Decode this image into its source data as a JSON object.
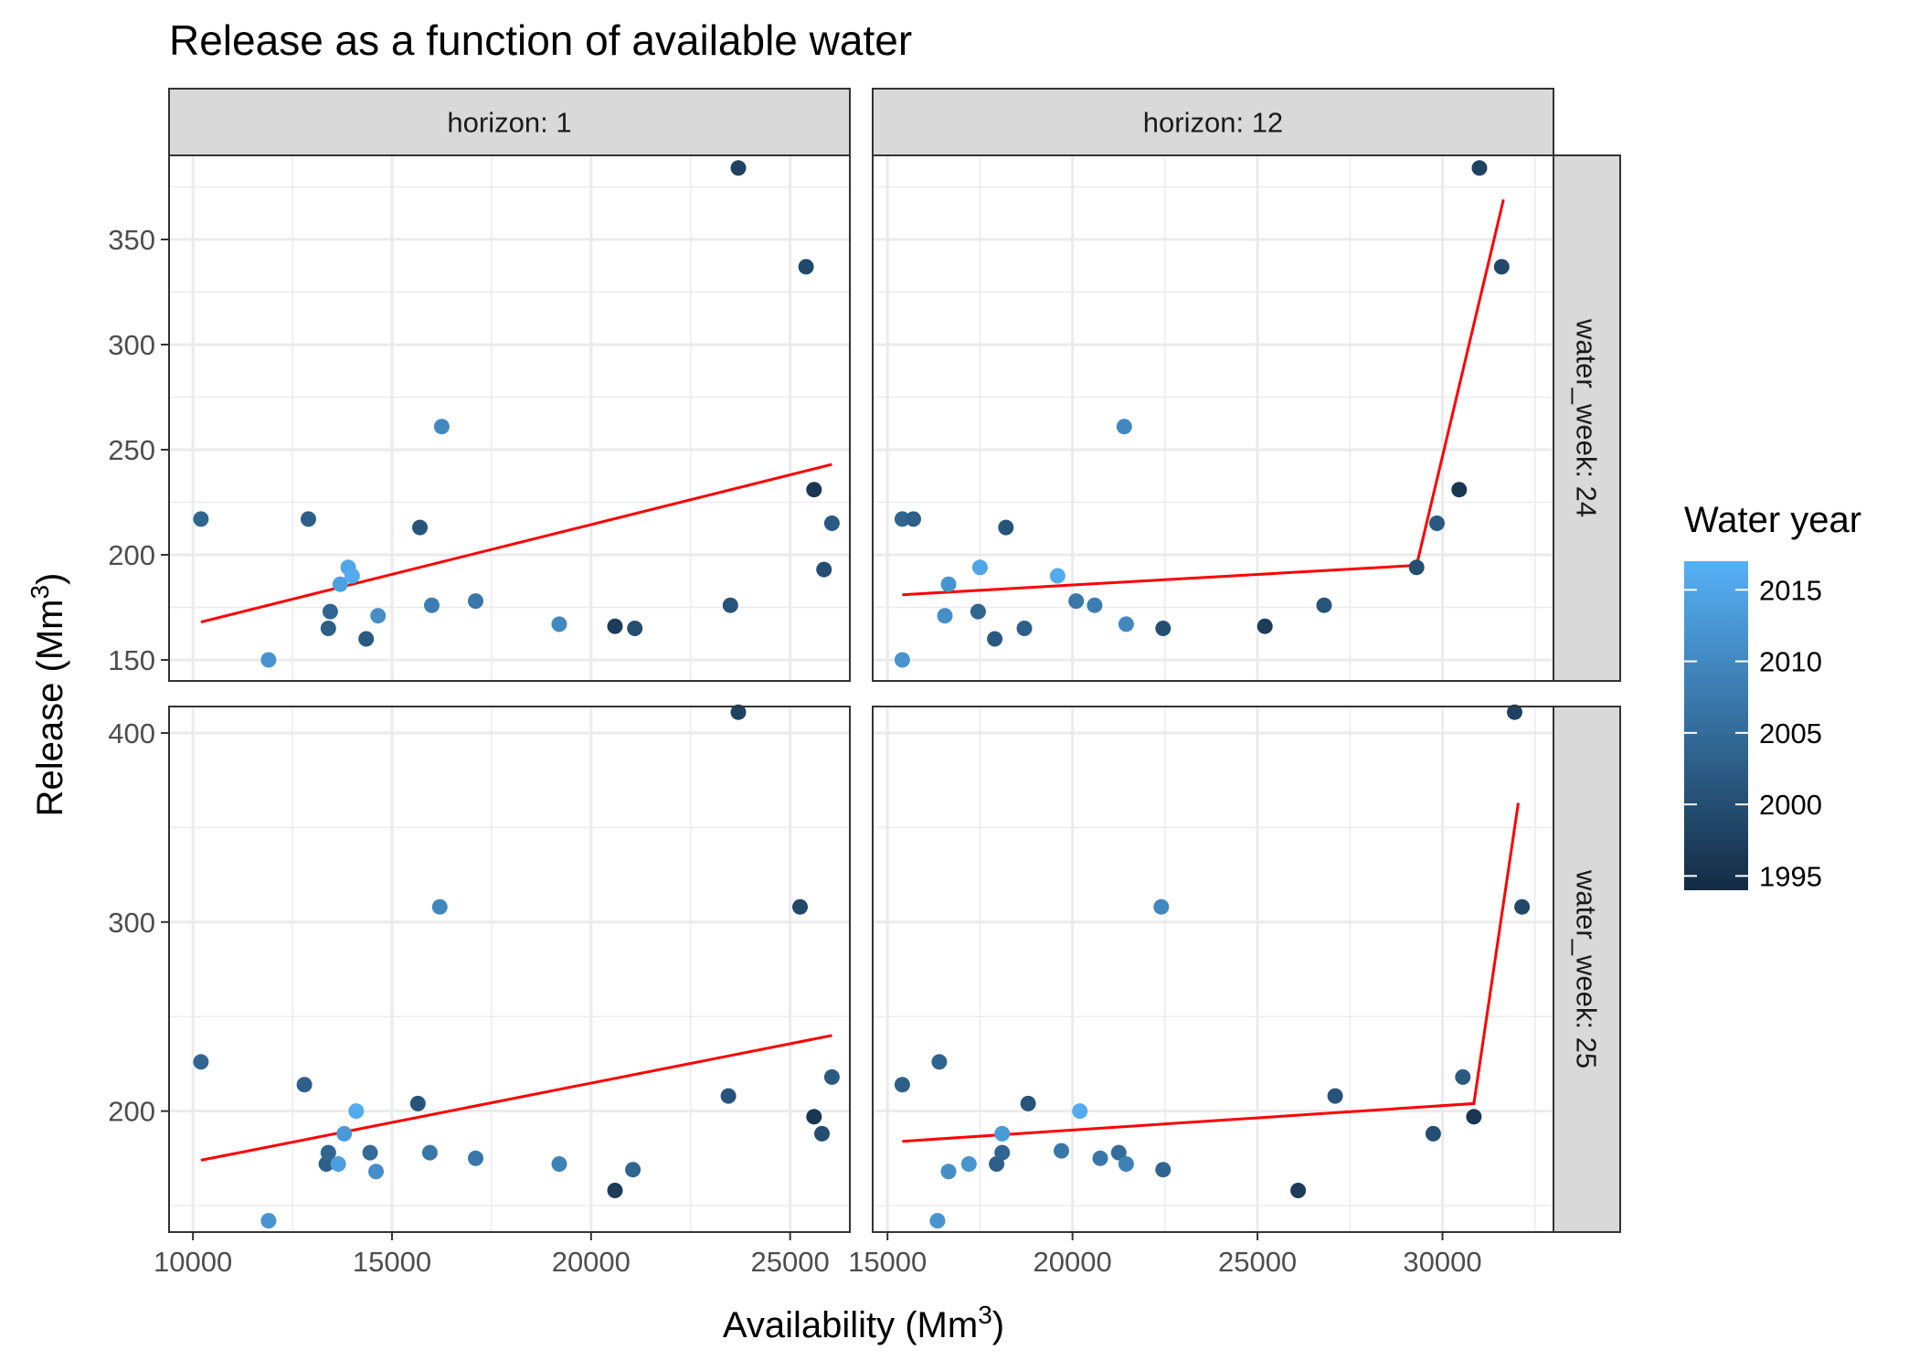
{
  "chart_data": {
    "type": "scatter",
    "title": "Release as a function of available water",
    "xlabel": "Availability (Mm",
    "xlabel_sup": "3",
    "xlabel_close": ")",
    "ylabel": "Release (Mm",
    "ylabel_sup": "3",
    "ylabel_close": ")",
    "facet_cols": [
      "horizon: 1",
      "horizon: 12"
    ],
    "facet_rows": [
      "water_week: 24",
      "water_week: 25"
    ],
    "x_ticks": {
      "left": [
        10000,
        15000,
        20000,
        25000
      ],
      "right": [
        15000,
        20000,
        25000,
        30000
      ]
    },
    "x_range": {
      "left": [
        9400,
        26500
      ],
      "right": [
        14600,
        33000
      ]
    },
    "y_ranges": [
      [
        140,
        390
      ],
      [
        136,
        414
      ]
    ],
    "y_ticks": [
      [
        150,
        200,
        250,
        300,
        350
      ],
      [
        200,
        300,
        400
      ]
    ],
    "grid": true,
    "legend": {
      "title": "Water year",
      "position": "right",
      "range": [
        1994,
        2017
      ],
      "ticks": [
        1995,
        2000,
        2005,
        2010,
        2015
      ],
      "color_low": "#132B43",
      "color_high": "#56B1F7"
    },
    "fit_line_color": "#FF0000",
    "panels": [
      {
        "row": 0,
        "col": 0,
        "points": [
          {
            "x": 10200,
            "y": 217,
            "year": 2004
          },
          {
            "x": 11900,
            "y": 150,
            "year": 2012
          },
          {
            "x": 12900,
            "y": 217,
            "year": 2003
          },
          {
            "x": 13400,
            "y": 165,
            "year": 2003
          },
          {
            "x": 13450,
            "y": 173,
            "year": 2004
          },
          {
            "x": 13700,
            "y": 186,
            "year": 2014
          },
          {
            "x": 13900,
            "y": 194,
            "year": 2015
          },
          {
            "x": 14000,
            "y": 190,
            "year": 2016
          },
          {
            "x": 14350,
            "y": 160,
            "year": 2002
          },
          {
            "x": 14650,
            "y": 171,
            "year": 2011
          },
          {
            "x": 15700,
            "y": 213,
            "year": 2001
          },
          {
            "x": 16000,
            "y": 176,
            "year": 2008
          },
          {
            "x": 16250,
            "y": 261,
            "year": 2010
          },
          {
            "x": 17100,
            "y": 178,
            "year": 2007
          },
          {
            "x": 19200,
            "y": 167,
            "year": 2010
          },
          {
            "x": 20600,
            "y": 166,
            "year": 1997
          },
          {
            "x": 21100,
            "y": 165,
            "year": 2000
          },
          {
            "x": 23500,
            "y": 176,
            "year": 2001
          },
          {
            "x": 23700,
            "y": 384,
            "year": 1998
          },
          {
            "x": 25400,
            "y": 337,
            "year": 1999
          },
          {
            "x": 25600,
            "y": 231,
            "year": 1996
          },
          {
            "x": 25850,
            "y": 193,
            "year": 2000
          },
          {
            "x": 26050,
            "y": 215,
            "year": 2002
          }
        ],
        "fit": [
          {
            "x": 10200,
            "y": 168
          },
          {
            "x": 26050,
            "y": 243
          }
        ]
      },
      {
        "row": 0,
        "col": 1,
        "points": [
          {
            "x": 15400,
            "y": 217,
            "year": 2004
          },
          {
            "x": 15700,
            "y": 217,
            "year": 2003
          },
          {
            "x": 15400,
            "y": 150,
            "year": 2012
          },
          {
            "x": 16550,
            "y": 171,
            "year": 2011
          },
          {
            "x": 16650,
            "y": 186,
            "year": 2012
          },
          {
            "x": 17450,
            "y": 173,
            "year": 2004
          },
          {
            "x": 17500,
            "y": 194,
            "year": 2015
          },
          {
            "x": 17900,
            "y": 160,
            "year": 2002
          },
          {
            "x": 18200,
            "y": 213,
            "year": 2001
          },
          {
            "x": 18700,
            "y": 165,
            "year": 2003
          },
          {
            "x": 19600,
            "y": 190,
            "year": 2016
          },
          {
            "x": 20100,
            "y": 178,
            "year": 2007
          },
          {
            "x": 20600,
            "y": 176,
            "year": 2008
          },
          {
            "x": 21400,
            "y": 261,
            "year": 2010
          },
          {
            "x": 21450,
            "y": 167,
            "year": 2010
          },
          {
            "x": 22450,
            "y": 165,
            "year": 2000
          },
          {
            "x": 25200,
            "y": 166,
            "year": 1997
          },
          {
            "x": 26800,
            "y": 176,
            "year": 2001
          },
          {
            "x": 29300,
            "y": 194,
            "year": 2000
          },
          {
            "x": 29850,
            "y": 215,
            "year": 2002
          },
          {
            "x": 30450,
            "y": 231,
            "year": 1996
          },
          {
            "x": 31000,
            "y": 384,
            "year": 1998
          },
          {
            "x": 31600,
            "y": 337,
            "year": 1999
          }
        ],
        "fit": [
          {
            "x": 15400,
            "y": 181
          },
          {
            "x": 29300,
            "y": 195
          },
          {
            "x": 31650,
            "y": 369
          }
        ]
      },
      {
        "row": 1,
        "col": 0,
        "points": [
          {
            "x": 10200,
            "y": 226,
            "year": 2004
          },
          {
            "x": 11900,
            "y": 142,
            "year": 2012
          },
          {
            "x": 12800,
            "y": 214,
            "year": 2003
          },
          {
            "x": 13350,
            "y": 172,
            "year": 2003
          },
          {
            "x": 13400,
            "y": 178,
            "year": 2004
          },
          {
            "x": 13650,
            "y": 172,
            "year": 2014
          },
          {
            "x": 13800,
            "y": 188,
            "year": 2013
          },
          {
            "x": 14100,
            "y": 200,
            "year": 2016
          },
          {
            "x": 14450,
            "y": 178,
            "year": 2005
          },
          {
            "x": 14600,
            "y": 168,
            "year": 2011
          },
          {
            "x": 15650,
            "y": 204,
            "year": 2001
          },
          {
            "x": 15950,
            "y": 178,
            "year": 2007
          },
          {
            "x": 16200,
            "y": 308,
            "year": 2010
          },
          {
            "x": 17100,
            "y": 175,
            "year": 2007
          },
          {
            "x": 19200,
            "y": 172,
            "year": 2009
          },
          {
            "x": 20600,
            "y": 158,
            "year": 1997
          },
          {
            "x": 21050,
            "y": 169,
            "year": 2004
          },
          {
            "x": 23450,
            "y": 208,
            "year": 2001
          },
          {
            "x": 23700,
            "y": 411,
            "year": 1998
          },
          {
            "x": 25250,
            "y": 308,
            "year": 1999
          },
          {
            "x": 25600,
            "y": 197,
            "year": 1996
          },
          {
            "x": 25800,
            "y": 188,
            "year": 2000
          },
          {
            "x": 26050,
            "y": 218,
            "year": 2002
          }
        ],
        "fit": [
          {
            "x": 10200,
            "y": 174
          },
          {
            "x": 26050,
            "y": 240
          }
        ]
      },
      {
        "row": 1,
        "col": 1,
        "points": [
          {
            "x": 15400,
            "y": 214,
            "year": 2003
          },
          {
            "x": 16400,
            "y": 226,
            "year": 2004
          },
          {
            "x": 16350,
            "y": 142,
            "year": 2012
          },
          {
            "x": 16650,
            "y": 168,
            "year": 2011
          },
          {
            "x": 17200,
            "y": 172,
            "year": 2012
          },
          {
            "x": 17950,
            "y": 172,
            "year": 2003
          },
          {
            "x": 18100,
            "y": 178,
            "year": 2004
          },
          {
            "x": 18100,
            "y": 188,
            "year": 2013
          },
          {
            "x": 18800,
            "y": 204,
            "year": 2001
          },
          {
            "x": 19700,
            "y": 179,
            "year": 2007
          },
          {
            "x": 20200,
            "y": 200,
            "year": 2016
          },
          {
            "x": 20750,
            "y": 175,
            "year": 2007
          },
          {
            "x": 21250,
            "y": 178,
            "year": 2005
          },
          {
            "x": 21450,
            "y": 172,
            "year": 2009
          },
          {
            "x": 22400,
            "y": 308,
            "year": 2010
          },
          {
            "x": 22450,
            "y": 169,
            "year": 2004
          },
          {
            "x": 26100,
            "y": 158,
            "year": 1997
          },
          {
            "x": 27100,
            "y": 208,
            "year": 2001
          },
          {
            "x": 29750,
            "y": 188,
            "year": 2000
          },
          {
            "x": 30850,
            "y": 197,
            "year": 1996
          },
          {
            "x": 30550,
            "y": 218,
            "year": 2002
          },
          {
            "x": 31950,
            "y": 411,
            "year": 1998
          },
          {
            "x": 32150,
            "y": 308,
            "year": 1999
          }
        ],
        "fit": [
          {
            "x": 15400,
            "y": 184
          },
          {
            "x": 30850,
            "y": 204
          },
          {
            "x": 32050,
            "y": 363
          }
        ]
      }
    ]
  }
}
